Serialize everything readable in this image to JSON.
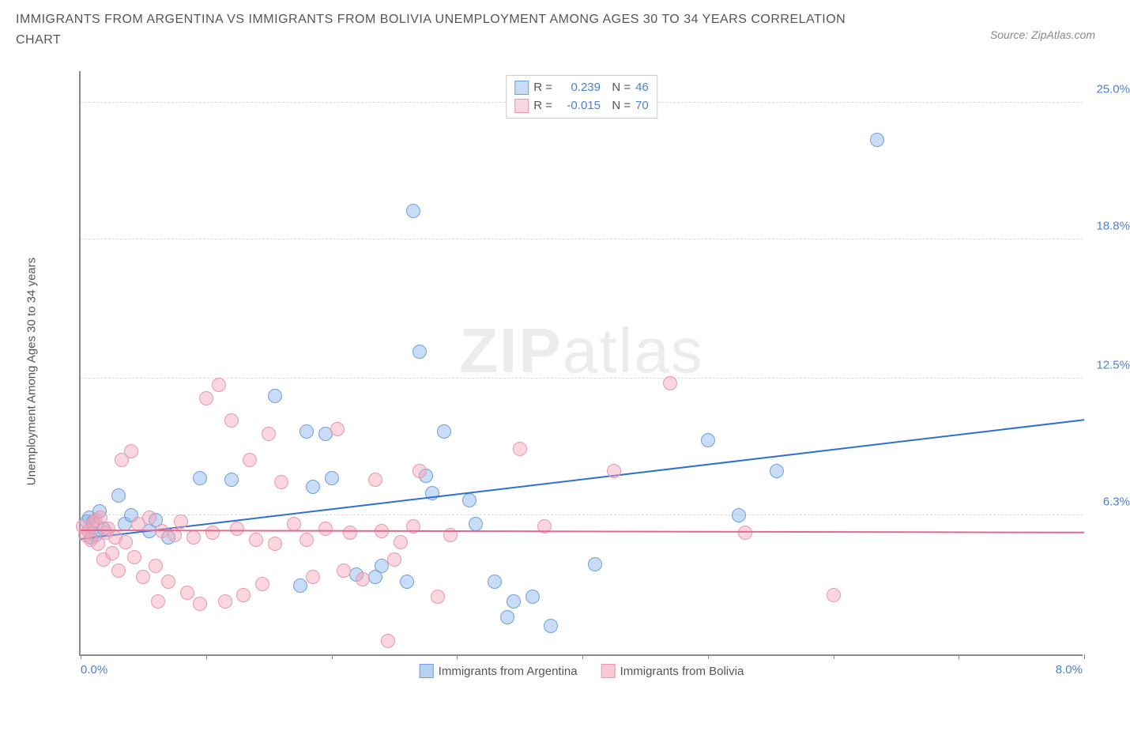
{
  "header": {
    "title": "IMMIGRANTS FROM ARGENTINA VS IMMIGRANTS FROM BOLIVIA UNEMPLOYMENT AMONG AGES 30 TO 34 YEARS CORRELATION CHART",
    "source": "Source: ZipAtlas.com"
  },
  "chart": {
    "type": "scatter",
    "watermark": "ZIPatlas",
    "y_axis_title": "Unemployment Among Ages 30 to 34 years",
    "xlim": [
      0.0,
      8.0
    ],
    "ylim": [
      0.0,
      26.5
    ],
    "x_ticks": [
      0.0,
      1.0,
      2.0,
      3.0,
      4.0,
      5.0,
      6.0,
      7.0,
      8.0
    ],
    "x_tick_labels": {
      "min": "0.0%",
      "max": "8.0%"
    },
    "y_gridlines": [
      6.3,
      12.5,
      18.8,
      25.0
    ],
    "y_tick_labels": [
      "6.3%",
      "12.5%",
      "18.8%",
      "25.0%"
    ],
    "background_color": "#ffffff",
    "grid_color": "#dddddd",
    "axis_color": "#888888",
    "tick_label_color": "#4a7fd8",
    "series": [
      {
        "name": "Immigrants from Argentina",
        "fill_color": "rgba(135,178,232,0.45)",
        "stroke_color": "#6fa0db",
        "trend_color": "#2e6fd6",
        "r_value": "0.239",
        "n_value": "46",
        "marker_radius": 9,
        "trend": {
          "x1": 0.0,
          "y1": 5.2,
          "x2": 8.0,
          "y2": 10.6
        },
        "points": [
          [
            0.05,
            6.0
          ],
          [
            0.07,
            6.2
          ],
          [
            0.08,
            5.3
          ],
          [
            0.1,
            6.0
          ],
          [
            0.12,
            5.4
          ],
          [
            0.15,
            6.5
          ],
          [
            0.18,
            5.7
          ],
          [
            0.3,
            7.2
          ],
          [
            0.35,
            5.9
          ],
          [
            0.4,
            6.3
          ],
          [
            0.55,
            5.6
          ],
          [
            0.6,
            6.1
          ],
          [
            0.7,
            5.3
          ],
          [
            0.95,
            8.0
          ],
          [
            1.2,
            7.9
          ],
          [
            1.55,
            11.7
          ],
          [
            1.75,
            3.1
          ],
          [
            1.8,
            10.1
          ],
          [
            1.85,
            7.6
          ],
          [
            1.95,
            10.0
          ],
          [
            2.0,
            8.0
          ],
          [
            2.2,
            3.6
          ],
          [
            2.35,
            3.5
          ],
          [
            2.4,
            4.0
          ],
          [
            2.6,
            3.3
          ],
          [
            2.65,
            20.1
          ],
          [
            2.7,
            13.7
          ],
          [
            2.75,
            8.1
          ],
          [
            2.8,
            7.3
          ],
          [
            2.9,
            10.1
          ],
          [
            3.1,
            7.0
          ],
          [
            3.15,
            5.9
          ],
          [
            3.3,
            3.3
          ],
          [
            3.4,
            1.7
          ],
          [
            3.45,
            2.4
          ],
          [
            3.6,
            2.6
          ],
          [
            3.75,
            1.3
          ],
          [
            4.1,
            4.1
          ],
          [
            5.0,
            9.7
          ],
          [
            5.25,
            6.3
          ],
          [
            5.55,
            8.3
          ],
          [
            6.35,
            23.3
          ]
        ]
      },
      {
        "name": "Immigrants from Bolivia",
        "fill_color": "rgba(244,164,185,0.45)",
        "stroke_color": "#e997ae",
        "trend_color": "#e06a8e",
        "r_value": "-0.015",
        "n_value": "70",
        "marker_radius": 9,
        "trend": {
          "x1": 0.0,
          "y1": 5.6,
          "x2": 8.0,
          "y2": 5.5
        },
        "points": [
          [
            0.02,
            5.8
          ],
          [
            0.04,
            5.4
          ],
          [
            0.06,
            5.6
          ],
          [
            0.08,
            5.2
          ],
          [
            0.1,
            5.9
          ],
          [
            0.12,
            6.1
          ],
          [
            0.14,
            5.0
          ],
          [
            0.16,
            6.2
          ],
          [
            0.18,
            4.3
          ],
          [
            0.2,
            5.5
          ],
          [
            0.22,
            5.7
          ],
          [
            0.25,
            4.6
          ],
          [
            0.28,
            5.3
          ],
          [
            0.3,
            3.8
          ],
          [
            0.33,
            8.8
          ],
          [
            0.36,
            5.1
          ],
          [
            0.4,
            9.2
          ],
          [
            0.43,
            4.4
          ],
          [
            0.46,
            5.9
          ],
          [
            0.5,
            3.5
          ],
          [
            0.55,
            6.2
          ],
          [
            0.6,
            4.0
          ],
          [
            0.62,
            2.4
          ],
          [
            0.65,
            5.6
          ],
          [
            0.7,
            3.3
          ],
          [
            0.75,
            5.4
          ],
          [
            0.8,
            6.0
          ],
          [
            0.85,
            2.8
          ],
          [
            0.9,
            5.3
          ],
          [
            0.95,
            2.3
          ],
          [
            1.0,
            11.6
          ],
          [
            1.05,
            5.5
          ],
          [
            1.1,
            12.2
          ],
          [
            1.15,
            2.4
          ],
          [
            1.2,
            10.6
          ],
          [
            1.25,
            5.7
          ],
          [
            1.3,
            2.7
          ],
          [
            1.35,
            8.8
          ],
          [
            1.4,
            5.2
          ],
          [
            1.45,
            3.2
          ],
          [
            1.5,
            10.0
          ],
          [
            1.55,
            5.0
          ],
          [
            1.6,
            7.8
          ],
          [
            1.7,
            5.9
          ],
          [
            1.8,
            5.2
          ],
          [
            1.85,
            3.5
          ],
          [
            1.95,
            5.7
          ],
          [
            2.05,
            10.2
          ],
          [
            2.1,
            3.8
          ],
          [
            2.15,
            5.5
          ],
          [
            2.25,
            3.4
          ],
          [
            2.35,
            7.9
          ],
          [
            2.4,
            5.6
          ],
          [
            2.45,
            0.6
          ],
          [
            2.5,
            4.3
          ],
          [
            2.55,
            5.1
          ],
          [
            2.65,
            5.8
          ],
          [
            2.7,
            8.3
          ],
          [
            2.85,
            2.6
          ],
          [
            2.95,
            5.4
          ],
          [
            3.5,
            9.3
          ],
          [
            3.7,
            5.8
          ],
          [
            4.25,
            8.3
          ],
          [
            4.7,
            12.3
          ],
          [
            5.3,
            5.5
          ],
          [
            6.0,
            2.7
          ]
        ]
      }
    ],
    "legend_bottom": [
      {
        "label": "Immigrants from Argentina",
        "fill": "rgba(135,178,232,0.6)",
        "stroke": "#6fa0db"
      },
      {
        "label": "Immigrants from Bolivia",
        "fill": "rgba(244,164,185,0.6)",
        "stroke": "#e997ae"
      }
    ]
  }
}
